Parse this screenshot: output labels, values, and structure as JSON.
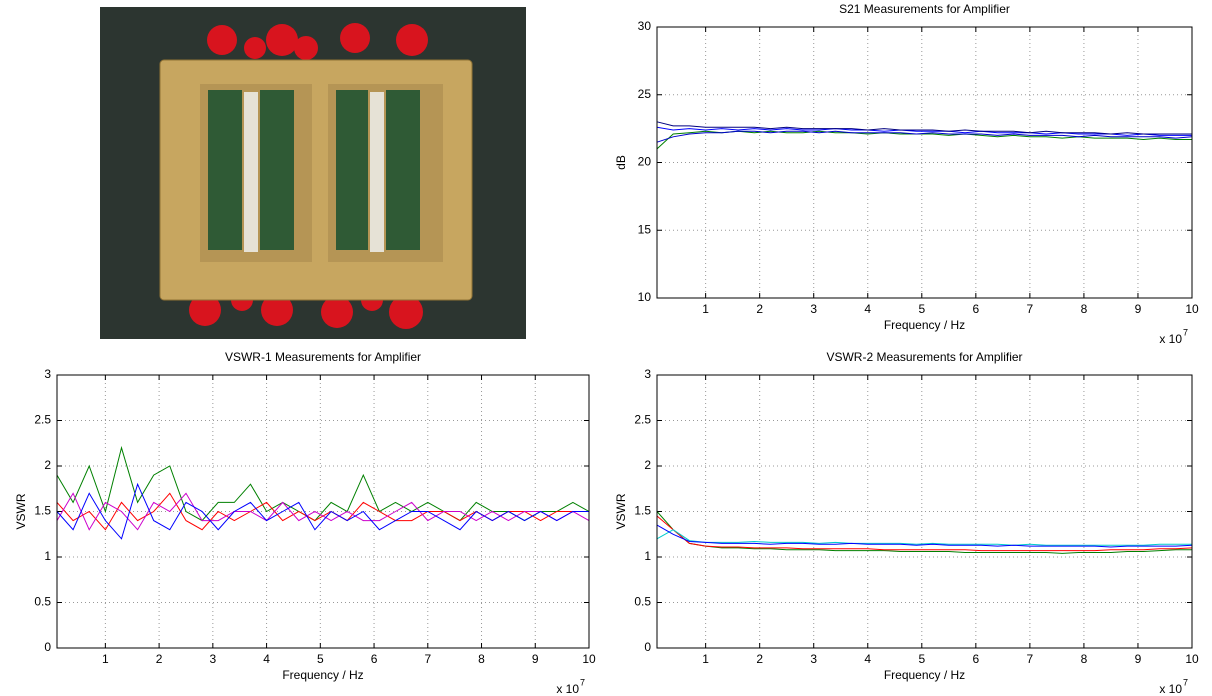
{
  "chart_data": [
    {
      "type": "line",
      "title": "S21 Measurements for Amplifier",
      "x_label": "Frequency / Hz",
      "y_label": "dB",
      "x_multiplier": {
        "base": "x 10",
        "power": "7"
      },
      "grid": true,
      "xlim": [
        1000000,
        100000000
      ],
      "xticks": [
        {
          "value": 10000000,
          "label": "1"
        },
        {
          "value": 20000000,
          "label": "2"
        },
        {
          "value": 30000000,
          "label": "3"
        },
        {
          "value": 40000000,
          "label": "4"
        },
        {
          "value": 50000000,
          "label": "5"
        },
        {
          "value": 60000000,
          "label": "6"
        },
        {
          "value": 70000000,
          "label": "7"
        },
        {
          "value": 80000000,
          "label": "8"
        },
        {
          "value": 90000000,
          "label": "9"
        },
        {
          "value": 100000000,
          "label": "10"
        }
      ],
      "ylim": [
        10,
        30
      ],
      "yticks": [
        10,
        15,
        20,
        25,
        30
      ],
      "x": [
        1000000,
        4000000,
        7000000,
        10000000,
        13000000,
        16000000,
        19000000,
        22000000,
        25000000,
        28000000,
        31000000,
        34000000,
        37000000,
        40000000,
        43000000,
        46000000,
        49000000,
        52000000,
        55000000,
        58000000,
        61000000,
        64000000,
        67000000,
        70000000,
        73000000,
        76000000,
        79000000,
        82000000,
        85000000,
        88000000,
        91000000,
        94000000,
        97000000,
        100000000
      ],
      "series": [
        {
          "color": "#0000ff",
          "values": [
            22.6,
            22.4,
            22.5,
            22.4,
            22.5,
            22.4,
            22.5,
            22.4,
            22.5,
            22.4,
            22.4,
            22.5,
            22.4,
            22.4,
            22.3,
            22.4,
            22.3,
            22.3,
            22.3,
            22.2,
            22.3,
            22.2,
            22.2,
            22.2,
            22.1,
            22.2,
            22.1,
            22.1,
            22.1,
            22.0,
            22.1,
            22.0,
            22.0,
            22.0
          ]
        },
        {
          "color": "#008000",
          "values": [
            21.0,
            22.1,
            22.2,
            22.3,
            22.2,
            22.3,
            22.2,
            22.3,
            22.2,
            22.2,
            22.3,
            22.2,
            22.2,
            22.1,
            22.2,
            22.1,
            22.1,
            22.1,
            22.0,
            22.1,
            22.0,
            21.9,
            22.0,
            21.9,
            21.9,
            21.8,
            21.9,
            21.8,
            21.8,
            21.8,
            21.7,
            21.8,
            21.7,
            21.7
          ]
        },
        {
          "color": "#0000cc",
          "values": [
            21.5,
            21.9,
            22.1,
            22.2,
            22.2,
            22.3,
            22.3,
            22.2,
            22.3,
            22.3,
            22.2,
            22.3,
            22.2,
            22.2,
            22.2,
            22.2,
            22.1,
            22.2,
            22.1,
            22.1,
            22.1,
            22.0,
            22.1,
            22.0,
            22.0,
            22.0,
            21.9,
            22.0,
            21.9,
            21.9,
            21.9,
            21.9,
            21.8,
            21.9
          ]
        },
        {
          "color": "#000080",
          "values": [
            23.0,
            22.7,
            22.7,
            22.6,
            22.6,
            22.6,
            22.6,
            22.5,
            22.6,
            22.5,
            22.5,
            22.5,
            22.5,
            22.4,
            22.5,
            22.4,
            22.4,
            22.4,
            22.3,
            22.4,
            22.3,
            22.3,
            22.3,
            22.2,
            22.3,
            22.2,
            22.2,
            22.2,
            22.1,
            22.2,
            22.1,
            22.1,
            22.1,
            22.1
          ]
        }
      ]
    },
    {
      "type": "line",
      "title": "VSWR-1 Measurements for Amplifier",
      "x_label": "Frequency / Hz",
      "y_label": "VSWR",
      "x_multiplier": {
        "base": "x 10",
        "power": "7"
      },
      "grid": true,
      "xlim": [
        1000000,
        100000000
      ],
      "xticks": [
        {
          "value": 10000000,
          "label": "1"
        },
        {
          "value": 20000000,
          "label": "2"
        },
        {
          "value": 30000000,
          "label": "3"
        },
        {
          "value": 40000000,
          "label": "4"
        },
        {
          "value": 50000000,
          "label": "5"
        },
        {
          "value": 60000000,
          "label": "6"
        },
        {
          "value": 70000000,
          "label": "7"
        },
        {
          "value": 80000000,
          "label": "8"
        },
        {
          "value": 90000000,
          "label": "9"
        },
        {
          "value": 100000000,
          "label": "10"
        }
      ],
      "ylim": [
        0,
        3
      ],
      "yticks": [
        0,
        0.5,
        1,
        1.5,
        2,
        2.5,
        3
      ],
      "x": [
        1000000,
        4000000,
        7000000,
        10000000,
        13000000,
        16000000,
        19000000,
        22000000,
        25000000,
        28000000,
        31000000,
        34000000,
        37000000,
        40000000,
        43000000,
        46000000,
        49000000,
        52000000,
        55000000,
        58000000,
        61000000,
        64000000,
        67000000,
        70000000,
        73000000,
        76000000,
        79000000,
        82000000,
        85000000,
        88000000,
        91000000,
        94000000,
        97000000,
        100000000
      ],
      "series": [
        {
          "color": "#008000",
          "values": [
            1.9,
            1.6,
            2.0,
            1.5,
            2.2,
            1.6,
            1.9,
            2.0,
            1.5,
            1.4,
            1.6,
            1.6,
            1.8,
            1.5,
            1.6,
            1.5,
            1.4,
            1.6,
            1.5,
            1.9,
            1.5,
            1.6,
            1.5,
            1.6,
            1.5,
            1.4,
            1.6,
            1.5,
            1.5,
            1.4,
            1.5,
            1.5,
            1.6,
            1.5
          ]
        },
        {
          "color": "#ff0000",
          "values": [
            1.6,
            1.4,
            1.5,
            1.3,
            1.6,
            1.4,
            1.5,
            1.7,
            1.4,
            1.3,
            1.5,
            1.4,
            1.5,
            1.6,
            1.4,
            1.5,
            1.4,
            1.5,
            1.4,
            1.6,
            1.5,
            1.4,
            1.4,
            1.5,
            1.5,
            1.4,
            1.5,
            1.4,
            1.5,
            1.5,
            1.4,
            1.5,
            1.5,
            1.5
          ]
        },
        {
          "color": "#cc00cc",
          "values": [
            1.4,
            1.7,
            1.3,
            1.6,
            1.5,
            1.3,
            1.6,
            1.5,
            1.7,
            1.4,
            1.4,
            1.5,
            1.5,
            1.4,
            1.6,
            1.4,
            1.5,
            1.4,
            1.5,
            1.4,
            1.4,
            1.5,
            1.6,
            1.4,
            1.5,
            1.5,
            1.4,
            1.5,
            1.4,
            1.5,
            1.5,
            1.4,
            1.5,
            1.4
          ]
        },
        {
          "color": "#0000ff",
          "values": [
            1.5,
            1.3,
            1.7,
            1.4,
            1.2,
            1.8,
            1.4,
            1.3,
            1.6,
            1.5,
            1.3,
            1.5,
            1.6,
            1.4,
            1.5,
            1.6,
            1.3,
            1.5,
            1.4,
            1.5,
            1.3,
            1.4,
            1.5,
            1.5,
            1.4,
            1.3,
            1.5,
            1.4,
            1.5,
            1.4,
            1.5,
            1.4,
            1.5,
            1.5
          ]
        }
      ]
    },
    {
      "type": "line",
      "title": "VSWR-2 Measurements for Amplifier",
      "x_label": "Frequency / Hz",
      "y_label": "VSWR",
      "x_multiplier": {
        "base": "x 10",
        "power": "7"
      },
      "grid": true,
      "xlim": [
        1000000,
        100000000
      ],
      "xticks": [
        {
          "value": 10000000,
          "label": "1"
        },
        {
          "value": 20000000,
          "label": "2"
        },
        {
          "value": 30000000,
          "label": "3"
        },
        {
          "value": 40000000,
          "label": "4"
        },
        {
          "value": 50000000,
          "label": "5"
        },
        {
          "value": 60000000,
          "label": "6"
        },
        {
          "value": 70000000,
          "label": "7"
        },
        {
          "value": 80000000,
          "label": "8"
        },
        {
          "value": 90000000,
          "label": "9"
        },
        {
          "value": 100000000,
          "label": "10"
        }
      ],
      "ylim": [
        0,
        3
      ],
      "yticks": [
        0,
        0.5,
        1,
        1.5,
        2,
        2.5,
        3
      ],
      "x": [
        1000000,
        4000000,
        7000000,
        10000000,
        13000000,
        16000000,
        19000000,
        22000000,
        25000000,
        28000000,
        31000000,
        34000000,
        37000000,
        40000000,
        43000000,
        46000000,
        49000000,
        52000000,
        55000000,
        58000000,
        61000000,
        64000000,
        67000000,
        70000000,
        73000000,
        76000000,
        79000000,
        82000000,
        85000000,
        88000000,
        91000000,
        94000000,
        97000000,
        100000000
      ],
      "series": [
        {
          "color": "#008000",
          "values": [
            1.5,
            1.3,
            1.15,
            1.12,
            1.1,
            1.1,
            1.09,
            1.09,
            1.08,
            1.08,
            1.08,
            1.07,
            1.07,
            1.07,
            1.07,
            1.06,
            1.06,
            1.06,
            1.06,
            1.05,
            1.05,
            1.05,
            1.05,
            1.05,
            1.05,
            1.04,
            1.05,
            1.05,
            1.05,
            1.06,
            1.06,
            1.07,
            1.08,
            1.08
          ]
        },
        {
          "color": "#ff0000",
          "values": [
            1.45,
            1.3,
            1.15,
            1.12,
            1.11,
            1.11,
            1.1,
            1.1,
            1.1,
            1.09,
            1.09,
            1.09,
            1.09,
            1.09,
            1.08,
            1.08,
            1.08,
            1.08,
            1.08,
            1.08,
            1.07,
            1.07,
            1.07,
            1.07,
            1.07,
            1.07,
            1.07,
            1.07,
            1.08,
            1.08,
            1.08,
            1.09,
            1.09,
            1.1
          ]
        },
        {
          "color": "#00cccc",
          "values": [
            1.2,
            1.3,
            1.18,
            1.16,
            1.16,
            1.16,
            1.17,
            1.16,
            1.16,
            1.16,
            1.15,
            1.16,
            1.15,
            1.15,
            1.15,
            1.15,
            1.14,
            1.15,
            1.14,
            1.14,
            1.14,
            1.14,
            1.13,
            1.14,
            1.13,
            1.13,
            1.13,
            1.13,
            1.13,
            1.13,
            1.13,
            1.14,
            1.14,
            1.14
          ]
        },
        {
          "color": "#0000ff",
          "values": [
            1.35,
            1.25,
            1.17,
            1.16,
            1.15,
            1.15,
            1.15,
            1.14,
            1.15,
            1.15,
            1.14,
            1.14,
            1.15,
            1.14,
            1.14,
            1.14,
            1.13,
            1.14,
            1.13,
            1.13,
            1.13,
            1.12,
            1.13,
            1.12,
            1.12,
            1.12,
            1.12,
            1.12,
            1.11,
            1.12,
            1.12,
            1.12,
            1.12,
            1.13
          ]
        }
      ]
    }
  ]
}
